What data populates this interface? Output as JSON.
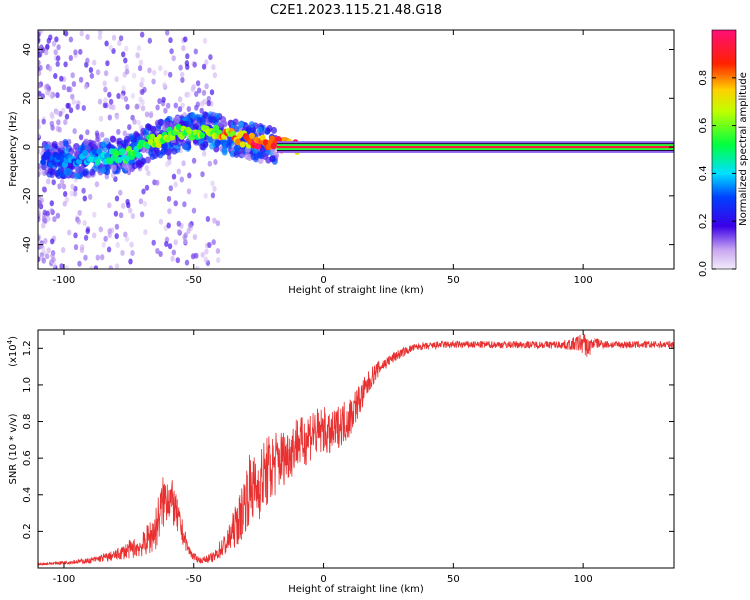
{
  "title": "C2E1.2023.115.21.48.G18",
  "colorbar": {
    "label": "Normalized spectral amplitude",
    "ticks": [
      "0.0",
      "0.2",
      "0.4",
      "0.6",
      "0.8"
    ],
    "tick_values": [
      0.0,
      0.2,
      0.4,
      0.6,
      0.8
    ],
    "range": [
      0,
      1
    ]
  },
  "chart_data": [
    {
      "type": "heatmap",
      "xlabel": "Height of straight line (km)",
      "ylabel": "Frequency (Hz)",
      "xlim": [
        -110,
        135
      ],
      "ylim": [
        -50,
        48
      ],
      "x_ticks": [
        -100,
        -50,
        0,
        50,
        100
      ],
      "x_tick_labels": [
        "-100",
        "-50",
        "0",
        "50",
        "100"
      ],
      "y_ticks": [
        -40,
        -20,
        0,
        20,
        40
      ],
      "y_tick_labels": [
        "-40",
        "-20",
        "0",
        "20",
        "40"
      ],
      "ridge": {
        "x": [
          -105,
          -95,
          -85,
          -75,
          -65,
          -55,
          -45,
          -35,
          -30,
          -25,
          -20,
          -15,
          -10,
          0,
          10,
          50,
          100,
          135
        ],
        "y": [
          -5,
          -5,
          -4,
          -3,
          3,
          6,
          7,
          4,
          3,
          1.5,
          1,
          0.5,
          0,
          0,
          0,
          0,
          0,
          0
        ],
        "amplitude": [
          0.3,
          0.35,
          0.4,
          0.5,
          0.6,
          0.55,
          0.65,
          0.75,
          0.8,
          0.85,
          0.8,
          0.85,
          0.85,
          0.9,
          0.95,
          0.95,
          0.95,
          0.95
        ]
      }
    },
    {
      "type": "line",
      "xlabel": "Height of straight line (km)",
      "ylabel": "SNR (10 * v/v)",
      "y_multiplier": "(x10",
      "y_multiplier_exp": "4",
      "y_multiplier_close": ")",
      "xlim": [
        -110,
        135
      ],
      "ylim": [
        0,
        1.3
      ],
      "x_ticks": [
        -100,
        -50,
        0,
        50,
        100
      ],
      "x_tick_labels": [
        "-100",
        "-50",
        "0",
        "50",
        "100"
      ],
      "y_ticks": [
        0.2,
        0.4,
        0.6,
        0.8,
        1.0,
        1.2
      ],
      "y_tick_labels": [
        "0.2",
        "0.4",
        "0.6",
        "0.8",
        "1.0",
        "1.2"
      ],
      "series": [
        {
          "color": "#e83030",
          "x": [
            -110,
            -100,
            -90,
            -80,
            -75,
            -70,
            -65,
            -62,
            -60,
            -58,
            -55,
            -52,
            -50,
            -47,
            -45,
            -42,
            -40,
            -37,
            -35,
            -32,
            -30,
            -28,
            -26,
            -24,
            -22,
            -20,
            -18,
            -16,
            -14,
            -12,
            -10,
            -8,
            -6,
            -4,
            -2,
            0,
            2,
            4,
            6,
            8,
            10,
            12,
            14,
            16,
            18,
            20,
            22,
            25,
            28,
            31,
            34,
            37,
            40,
            45,
            50,
            60,
            70,
            80,
            90,
            95,
            100,
            102,
            104,
            110,
            120,
            135
          ],
          "y": [
            0.02,
            0.03,
            0.04,
            0.07,
            0.1,
            0.12,
            0.2,
            0.35,
            0.4,
            0.35,
            0.22,
            0.1,
            0.06,
            0.04,
            0.05,
            0.06,
            0.1,
            0.14,
            0.2,
            0.28,
            0.38,
            0.45,
            0.42,
            0.48,
            0.52,
            0.55,
            0.58,
            0.6,
            0.62,
            0.65,
            0.7,
            0.68,
            0.72,
            0.75,
            0.73,
            0.76,
            0.72,
            0.74,
            0.78,
            0.8,
            0.82,
            0.88,
            0.92,
            0.97,
            1.03,
            1.07,
            1.1,
            1.13,
            1.16,
            1.18,
            1.2,
            1.21,
            1.21,
            1.22,
            1.22,
            1.22,
            1.22,
            1.22,
            1.22,
            1.22,
            1.23,
            1.2,
            1.23,
            1.22,
            1.22,
            1.22
          ],
          "noise": [
            0.005,
            0.01,
            0.015,
            0.03,
            0.05,
            0.06,
            0.12,
            0.15,
            0.14,
            0.12,
            0.08,
            0.03,
            0.02,
            0.015,
            0.02,
            0.03,
            0.05,
            0.07,
            0.1,
            0.14,
            0.18,
            0.2,
            0.18,
            0.2,
            0.2,
            0.2,
            0.18,
            0.16,
            0.15,
            0.15,
            0.15,
            0.14,
            0.15,
            0.15,
            0.14,
            0.13,
            0.12,
            0.12,
            0.12,
            0.12,
            0.12,
            0.1,
            0.09,
            0.08,
            0.06,
            0.05,
            0.04,
            0.03,
            0.03,
            0.025,
            0.02,
            0.02,
            0.02,
            0.02,
            0.02,
            0.02,
            0.02,
            0.02,
            0.02,
            0.03,
            0.06,
            0.06,
            0.03,
            0.02,
            0.02,
            0.02
          ]
        }
      ]
    }
  ]
}
